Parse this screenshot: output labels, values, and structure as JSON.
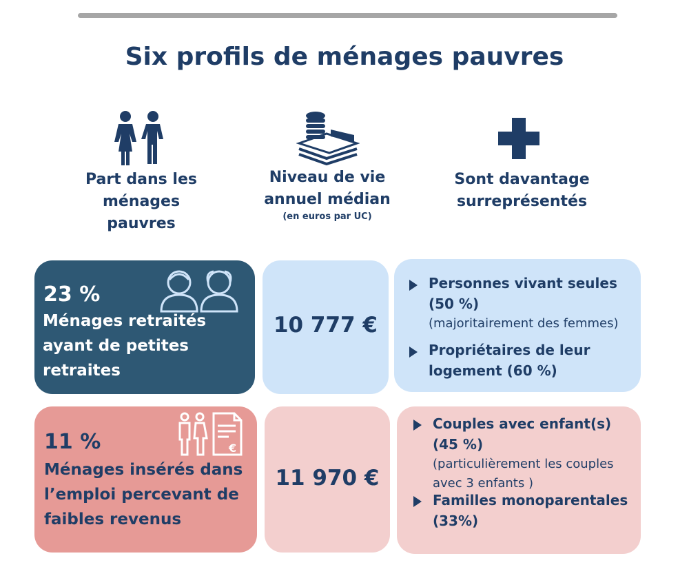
{
  "title": "Six profils de ménages pauvres",
  "columns": [
    {
      "icon": "couple-icon",
      "label": "Part dans les ménages pauvres",
      "sub": ""
    },
    {
      "icon": "money-icon",
      "label": "Niveau de vie annuel médian",
      "sub": "(en euros par UC)"
    },
    {
      "icon": "plus-icon",
      "label": "Sont davantage surreprésentés",
      "sub": ""
    }
  ],
  "profiles": [
    {
      "share": "23 %",
      "label": "Ménages retraités ayant de petites retraites",
      "amount": "10 777 €",
      "items": [
        {
          "bold": "Personnes vivant seules (50 %)",
          "note": "(majoritairement des femmes)"
        },
        {
          "bold": "Propriétaires de leur logement (60 %)",
          "note": ""
        }
      ]
    },
    {
      "share": "11 %",
      "label": "Ménages insérés dans l’emploi percevant de faibles revenus",
      "amount": "11 970 €",
      "items": [
        {
          "bold": "Couples avec enfant(s) (45 %)",
          "note": "(particulièrement les couples avec 3 enfants )"
        },
        {
          "bold": "Familles monoparentales (33%)",
          "note": ""
        }
      ]
    }
  ],
  "colors": {
    "navy": "#1f3d66",
    "dark": "#2e5874",
    "light": "#cfe4f9",
    "pink_dark": "#e69a96",
    "pink_light": "#f3cfce"
  }
}
